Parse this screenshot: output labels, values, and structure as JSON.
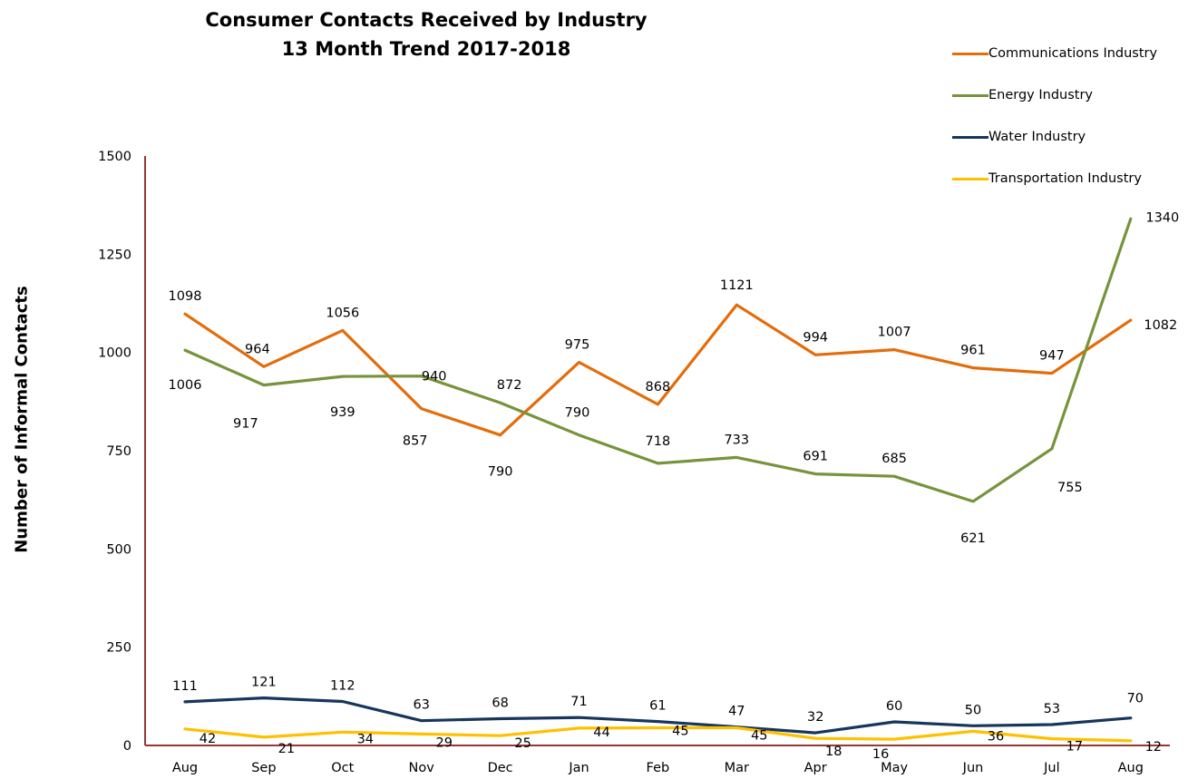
{
  "chart_data": {
    "type": "line",
    "title": "Consumer Contacts Received by Industry",
    "subtitle": "13 Month Trend  2017-2018",
    "ylabel": "Number of Informal Contacts",
    "xlabel": "",
    "ylim": [
      0,
      1500
    ],
    "yticks": [
      0,
      250,
      500,
      750,
      1000,
      1250,
      1500
    ],
    "grid": false,
    "legend_position": "top-right",
    "categories": [
      "Aug",
      "Sep",
      "Oct",
      "Nov",
      "Dec",
      "Jan",
      "Feb",
      "Mar",
      "Apr",
      "May",
      "Jun",
      "Jul",
      "Aug"
    ],
    "series": [
      {
        "name": "Communications Industry",
        "color": "#E46C0A",
        "values": [
          1098,
          964,
          1056,
          857,
          790,
          975,
          868,
          1121,
          994,
          1007,
          961,
          947,
          1082
        ]
      },
      {
        "name": "Energy Industry",
        "color": "#77933C",
        "values": [
          1006,
          917,
          939,
          940,
          872,
          790,
          718,
          733,
          691,
          685,
          621,
          755,
          1340
        ]
      },
      {
        "name": "Water Industry",
        "color": "#17365D",
        "values": [
          111,
          121,
          112,
          63,
          68,
          71,
          61,
          47,
          32,
          60,
          50,
          53,
          70
        ]
      },
      {
        "name": "Transportation Industry",
        "color": "#FFC000",
        "values": [
          42,
          21,
          34,
          29,
          25,
          44,
          45,
          45,
          18,
          16,
          36,
          17,
          12
        ]
      }
    ],
    "axis_color": "#953735"
  }
}
